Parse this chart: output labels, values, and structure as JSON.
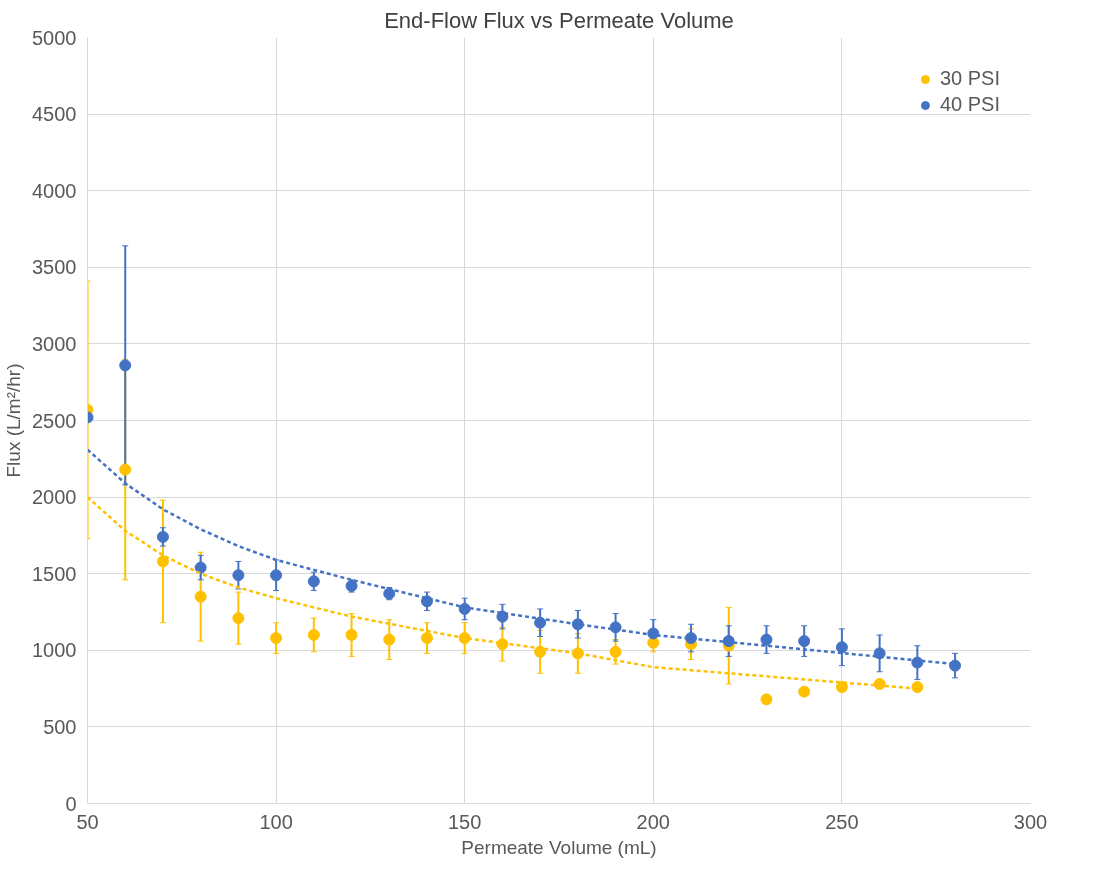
{
  "chart_data": {
    "type": "scatter",
    "title": "End-Flow Flux vs Permeate Volume",
    "xlabel": "Permeate Volume (mL)",
    "ylabel": "Flux (L/m²/hr)",
    "xlim": [
      50,
      300
    ],
    "xticks": [
      50,
      100,
      150,
      200,
      250,
      300
    ],
    "ylim": [
      0,
      5000
    ],
    "yticks": [
      0,
      500,
      1000,
      1500,
      2000,
      2500,
      3000,
      3500,
      4000,
      4500,
      5000
    ],
    "grid": true,
    "legend": "top right",
    "series": [
      {
        "name": "30 PSI",
        "marker": "circle",
        "color": "#ffc000",
        "x": [
          50,
          60,
          70,
          80,
          90,
          100,
          110,
          120,
          130,
          140,
          150,
          160,
          170,
          180,
          190,
          200,
          210,
          220,
          230,
          240,
          250,
          260,
          270
        ],
        "values": [
          2570,
          2180,
          1580,
          1350,
          1210,
          1080,
          1100,
          1100,
          1070,
          1080,
          1080,
          1040,
          990,
          980,
          990,
          1050,
          1040,
          1030,
          680,
          730,
          760,
          780,
          760
        ],
        "errors": [
          840,
          720,
          400,
          290,
          170,
          100,
          110,
          140,
          130,
          100,
          100,
          110,
          140,
          130,
          80,
          60,
          100,
          250,
          null,
          null,
          null,
          null,
          null
        ]
      },
      {
        "name": "40 PSI",
        "marker": "circle",
        "color": "#4472c4",
        "x": [
          50,
          60,
          70,
          80,
          90,
          100,
          110,
          120,
          130,
          140,
          150,
          160,
          170,
          180,
          190,
          200,
          210,
          220,
          230,
          240,
          250,
          260,
          270,
          280
        ],
        "values": [
          2520,
          2860,
          1740,
          1540,
          1490,
          1490,
          1450,
          1420,
          1370,
          1320,
          1270,
          1220,
          1180,
          1170,
          1150,
          1110,
          1080,
          1060,
          1070,
          1060,
          1020,
          980,
          920,
          900
        ],
        "errors": [
          null,
          780,
          60,
          80,
          90,
          100,
          60,
          40,
          40,
          60,
          70,
          80,
          90,
          90,
          90,
          90,
          90,
          100,
          90,
          100,
          120,
          120,
          110,
          80
        ]
      },
      {
        "type": "line",
        "line_style": "dashed",
        "color": "#ffc000",
        "x": [
          50,
          60,
          70,
          80,
          90,
          100,
          120,
          150,
          180,
          200,
          230,
          270
        ],
        "values": [
          2000,
          1780,
          1620,
          1500,
          1410,
          1340,
          1220,
          1080,
          980,
          890,
          830,
          750
        ]
      },
      {
        "type": "line",
        "line_style": "dashed",
        "color": "#4472c4",
        "x": [
          50,
          60,
          70,
          80,
          90,
          100,
          120,
          150,
          180,
          200,
          230,
          280
        ],
        "values": [
          2310,
          2090,
          1920,
          1790,
          1680,
          1590,
          1460,
          1280,
          1170,
          1100,
          1030,
          910
        ]
      }
    ]
  }
}
